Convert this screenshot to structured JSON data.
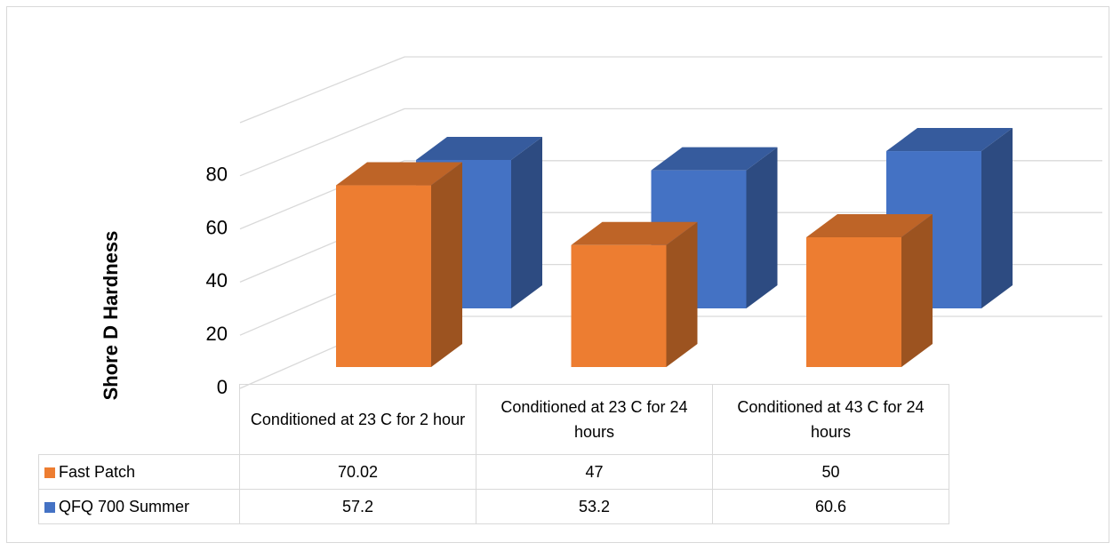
{
  "chart_data": {
    "type": "bar3d",
    "y_label": "Shore D Hardness",
    "categories": [
      "Conditioned at 23 C for 2 hour",
      "Conditioned at 23 C for 24 hours",
      "Conditioned at 43 C for 24 hours"
    ],
    "series": [
      {
        "name": "Fast Patch",
        "color": "#ed7d31",
        "values": [
          70.02,
          47,
          50
        ]
      },
      {
        "name": "QFQ 700 Summer",
        "color": "#4472c4",
        "values": [
          57.2,
          53.2,
          60.6
        ]
      }
    ],
    "ylim": [
      0,
      100
    ],
    "yticks": [
      0,
      20,
      40,
      60,
      80
    ],
    "grid": true,
    "data_table": true
  }
}
